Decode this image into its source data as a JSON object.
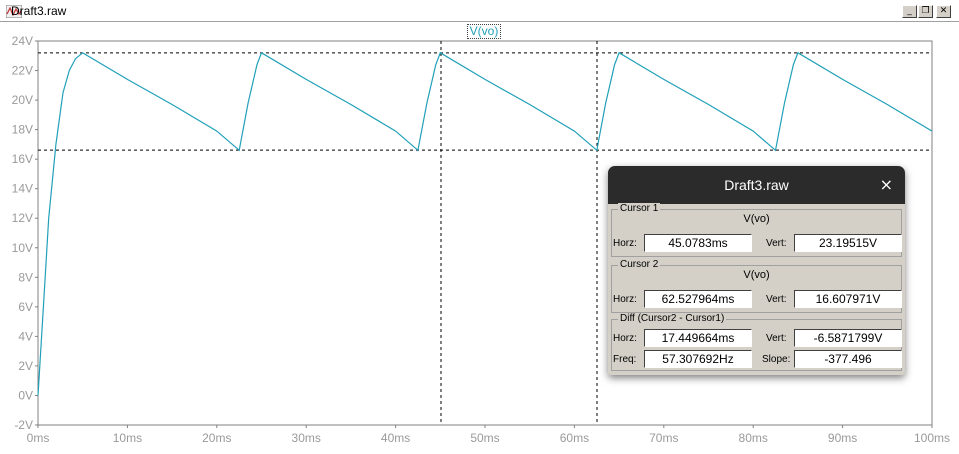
{
  "window": {
    "title": "Draft3.raw"
  },
  "window_buttons": [
    {
      "name": "minimize-button",
      "glyph": "_"
    },
    {
      "name": "restore-button",
      "glyph": "❐"
    },
    {
      "name": "close-button",
      "glyph": "✕"
    }
  ],
  "chart_data": {
    "type": "line",
    "legend": [
      "V(vo)"
    ],
    "xlabel": "",
    "ylabel": "",
    "xlim": [
      0,
      100
    ],
    "ylim": [
      -2,
      24
    ],
    "x_ticks": [
      "0ms",
      "10ms",
      "20ms",
      "30ms",
      "40ms",
      "50ms",
      "60ms",
      "70ms",
      "80ms",
      "90ms",
      "100ms"
    ],
    "y_ticks": [
      "-2V",
      "0V",
      "2V",
      "4V",
      "6V",
      "8V",
      "10V",
      "12V",
      "14V",
      "16V",
      "18V",
      "20V",
      "22V",
      "24V"
    ],
    "grid": false,
    "series_color": "#20a0b8",
    "series": [
      {
        "name": "V(vo)",
        "x": [
          0,
          0.6,
          1.2,
          2.0,
          2.8,
          3.5,
          4.2,
          5.0,
          10,
          15,
          20,
          22.5,
          23.5,
          24.5,
          25.0,
          30,
          35,
          40,
          42.5,
          43.5,
          44.5,
          45.0,
          50,
          55,
          60,
          62.5,
          63.5,
          64.5,
          65.0,
          70,
          75,
          80,
          82.5,
          83.5,
          84.5,
          85.0,
          90,
          95,
          100
        ],
        "y": [
          0,
          6,
          12,
          17,
          20.5,
          22,
          22.8,
          23.2,
          21.4,
          19.7,
          17.9,
          16.6,
          19.8,
          22.4,
          23.2,
          21.4,
          19.7,
          17.9,
          16.6,
          19.8,
          22.4,
          23.2,
          21.4,
          19.7,
          17.9,
          16.6,
          19.8,
          22.4,
          23.2,
          21.4,
          19.7,
          17.9,
          16.6,
          19.8,
          22.4,
          23.2,
          21.4,
          19.7,
          17.9
        ]
      }
    ],
    "cursors": {
      "c1": {
        "x": 45.0783,
        "y": 23.19515
      },
      "c2": {
        "x": 62.527964,
        "y": 16.607971
      }
    }
  },
  "cursor_dialog": {
    "title": "Draft3.raw",
    "close_glyph": "×",
    "cursor1": {
      "legend": "Cursor 1",
      "trace": "V(vo)",
      "horz_label": "Horz:",
      "horz": "45.0783ms",
      "vert_label": "Vert:",
      "vert": "23.19515V"
    },
    "cursor2": {
      "legend": "Cursor 2",
      "trace": "V(vo)",
      "horz_label": "Horz:",
      "horz": "62.527964ms",
      "vert_label": "Vert:",
      "vert": "16.607971V"
    },
    "diff": {
      "legend": "Diff (Cursor2 - Cursor1)",
      "horz_label": "Horz:",
      "horz": "17.449664ms",
      "vert_label": "Vert:",
      "vert": "-6.5871799V",
      "freq_label": "Freq:",
      "freq": "57.307692Hz",
      "slope_label": "Slope:",
      "slope": "-377.496"
    }
  }
}
